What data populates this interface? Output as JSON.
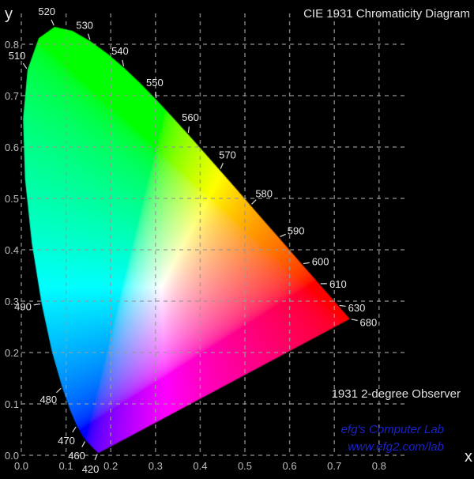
{
  "title": "CIE 1931 Chromaticity Diagram",
  "observer": "1931 2-degree Observer",
  "credit": [
    "efg's Computer Lab",
    "www.efg2.com/lab"
  ],
  "colors": {
    "background": "#000000",
    "grid": "#9a9a9a",
    "credit": "#1a22c8",
    "text": "#e6e6e6"
  },
  "chart_data": {
    "type": "area",
    "xlabel": "x",
    "ylabel": "y",
    "xlim": [
      0.0,
      0.85
    ],
    "ylim": [
      0.0,
      0.85
    ],
    "grid": true,
    "x_ticks": [
      "0.0",
      "0.1",
      "0.2",
      "0.3",
      "0.4",
      "0.5",
      "0.6",
      "0.7",
      "0.8"
    ],
    "y_ticks": [
      "0.0",
      "0.1",
      "0.2",
      "0.3",
      "0.4",
      "0.5",
      "0.6",
      "0.7",
      "0.8"
    ],
    "spectral_locus": [
      [
        380,
        0.1741,
        0.005
      ],
      [
        400,
        0.1733,
        0.0048
      ],
      [
        420,
        0.1714,
        0.0051
      ],
      [
        440,
        0.1644,
        0.0109
      ],
      [
        450,
        0.1566,
        0.0177
      ],
      [
        460,
        0.144,
        0.0297
      ],
      [
        465,
        0.1355,
        0.0399
      ],
      [
        470,
        0.1241,
        0.0578
      ],
      [
        475,
        0.1096,
        0.0868
      ],
      [
        480,
        0.0913,
        0.1327
      ],
      [
        485,
        0.0687,
        0.2007
      ],
      [
        490,
        0.0454,
        0.295
      ],
      [
        495,
        0.0235,
        0.4127
      ],
      [
        500,
        0.0082,
        0.5384
      ],
      [
        505,
        0.0039,
        0.6548
      ],
      [
        510,
        0.0139,
        0.7502
      ],
      [
        515,
        0.0389,
        0.812
      ],
      [
        520,
        0.0743,
        0.8338
      ],
      [
        525,
        0.1142,
        0.8262
      ],
      [
        530,
        0.1547,
        0.8059
      ],
      [
        535,
        0.1929,
        0.7816
      ],
      [
        540,
        0.2296,
        0.7543
      ],
      [
        545,
        0.2658,
        0.7243
      ],
      [
        550,
        0.3016,
        0.6923
      ],
      [
        555,
        0.3373,
        0.6589
      ],
      [
        560,
        0.3731,
        0.6245
      ],
      [
        565,
        0.4087,
        0.5896
      ],
      [
        570,
        0.4441,
        0.5547
      ],
      [
        575,
        0.4788,
        0.5202
      ],
      [
        580,
        0.5125,
        0.4866
      ],
      [
        585,
        0.5448,
        0.4544
      ],
      [
        590,
        0.5752,
        0.4242
      ],
      [
        595,
        0.6029,
        0.3965
      ],
      [
        600,
        0.627,
        0.3725
      ],
      [
        605,
        0.6482,
        0.3514
      ],
      [
        610,
        0.6658,
        0.334
      ],
      [
        620,
        0.6915,
        0.3083
      ],
      [
        630,
        0.7079,
        0.292
      ],
      [
        640,
        0.719,
        0.2809
      ],
      [
        680,
        0.7347,
        0.2653
      ]
    ],
    "wavelength_labels": [
      "420",
      "460",
      "470",
      "480",
      "490",
      "510",
      "520",
      "530",
      "540",
      "550",
      "560",
      "570",
      "580",
      "590",
      "600",
      "610",
      "630",
      "680"
    ]
  }
}
